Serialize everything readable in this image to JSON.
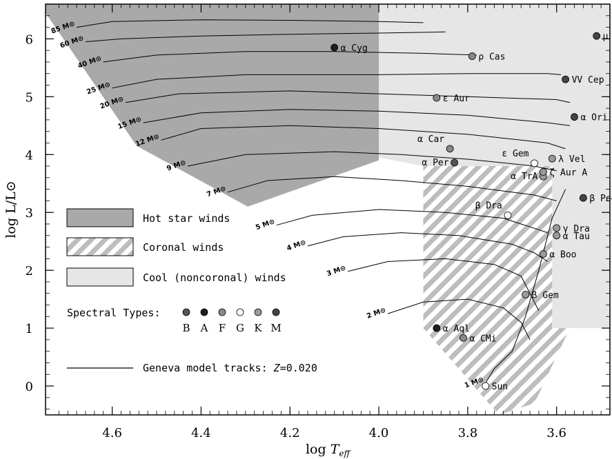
{
  "chart_data": {
    "type": "scatter",
    "title": "",
    "xlabel": "log T_eff",
    "xlabel_base": "log ",
    "xlabel_var": "T",
    "xlabel_sub": "eff",
    "ylabel": "log L/L⊙",
    "xlim": [
      4.75,
      3.48
    ],
    "ylim": [
      -0.5,
      6.6
    ],
    "x_reversed": true,
    "x_ticks": [
      4.6,
      4.4,
      4.2,
      4.0,
      3.8,
      3.6
    ],
    "x_tick_labels": [
      "4.6",
      "4.4",
      "4.2",
      "4.0",
      "3.8",
      "3.6"
    ],
    "y_ticks": [
      0,
      1,
      2,
      3,
      4,
      5,
      6
    ],
    "y_tick_labels": [
      "0",
      "1",
      "2",
      "3",
      "4",
      "5",
      "6"
    ],
    "regions": [
      {
        "name": "Hot star winds",
        "fill": "#a9a9a9",
        "pattern": "solid",
        "polygon": [
          [
            4.75,
            6.6
          ],
          [
            4.0,
            6.6
          ],
          [
            4.0,
            3.9
          ],
          [
            4.295,
            3.1
          ],
          [
            4.545,
            4.15
          ],
          [
            4.75,
            6.45
          ]
        ]
      },
      {
        "name": "Cool (noncoronal) winds",
        "fill": "#e6e6e6",
        "pattern": "solid",
        "polygon": [
          [
            4.0,
            6.6
          ],
          [
            3.48,
            6.6
          ],
          [
            3.48,
            1.0
          ],
          [
            3.61,
            1.0
          ],
          [
            3.61,
            3.8
          ],
          [
            3.9,
            3.8
          ],
          [
            4.0,
            3.95
          ]
        ]
      },
      {
        "name": "Coronal winds",
        "fill": "#bdbdbd",
        "pattern": "hatch",
        "polygon": [
          [
            3.9,
            3.8
          ],
          [
            3.61,
            3.8
          ],
          [
            3.61,
            1.0
          ],
          [
            3.57,
            1.0
          ],
          [
            3.65,
            -0.3
          ],
          [
            3.73,
            -0.5
          ],
          [
            3.9,
            1.0
          ]
        ]
      }
    ],
    "legend": {
      "placement": "left",
      "entries": [
        "Hot star winds",
        "Coronal winds",
        "Cool (noncoronal) winds"
      ],
      "spectral_label": "Spectral Types:",
      "spectral_types": [
        {
          "type": "B",
          "color": "#555555"
        },
        {
          "type": "A",
          "color": "#1e1e1e"
        },
        {
          "type": "F",
          "color": "#888888"
        },
        {
          "type": "G",
          "color": "#ffffff"
        },
        {
          "type": "K",
          "color": "#9a9a9a"
        },
        {
          "type": "M",
          "color": "#444444"
        }
      ],
      "track_label_prefix": "Geneva model tracks: ",
      "track_label_var": "Z",
      "track_label_value": "=0.020"
    },
    "series": [
      {
        "name": "B",
        "color": "#555555",
        "points": [
          {
            "label": "α Per",
            "x": 3.83,
            "y": 3.86
          }
        ]
      },
      {
        "name": "A",
        "color": "#1e1e1e",
        "points": [
          {
            "label": "α Cyg",
            "x": 4.1,
            "y": 5.85
          },
          {
            "label": "α Aql",
            "x": 3.87,
            "y": 1.0
          }
        ]
      },
      {
        "name": "F",
        "color": "#888888",
        "points": [
          {
            "label": "ε Aur",
            "x": 3.87,
            "y": 4.98
          },
          {
            "label": "ρ Cas",
            "x": 3.79,
            "y": 5.7
          },
          {
            "label": "α Car",
            "x": 3.84,
            "y": 4.1
          },
          {
            "label": "α CMi",
            "x": 3.81,
            "y": 0.83
          }
        ]
      },
      {
        "name": "G",
        "color": "#ffffff",
        "points": [
          {
            "label": "Sun",
            "x": 3.76,
            "y": 0.0
          },
          {
            "label": "ε Gem",
            "x": 3.65,
            "y": 3.85
          },
          {
            "label": "β Dra",
            "x": 3.71,
            "y": 2.95
          }
        ]
      },
      {
        "name": "K",
        "color": "#9a9a9a",
        "points": [
          {
            "label": "α TrA",
            "x": 3.63,
            "y": 3.62
          },
          {
            "label": "λ Vel",
            "x": 3.61,
            "y": 3.93
          },
          {
            "label": "ζ Aur A",
            "x": 3.63,
            "y": 3.7
          },
          {
            "label": "γ Dra",
            "x": 3.6,
            "y": 2.73
          },
          {
            "label": "α Tau",
            "x": 3.6,
            "y": 2.6
          },
          {
            "label": "α Boo",
            "x": 3.63,
            "y": 2.28
          },
          {
            "label": "β Gem",
            "x": 3.67,
            "y": 1.58
          }
        ]
      },
      {
        "name": "M",
        "color": "#444444",
        "points": [
          {
            "label": "μ Cep",
            "x": 3.51,
            "y": 6.05
          },
          {
            "label": "VV Cep",
            "x": 3.58,
            "y": 5.3
          },
          {
            "label": "α Ori",
            "x": 3.56,
            "y": 4.65
          },
          {
            "label": "β Peg",
            "x": 3.54,
            "y": 3.25
          }
        ]
      }
    ],
    "tracks": [
      {
        "label": "85 M⊙",
        "points": [
          [
            4.68,
            6.2
          ],
          [
            4.6,
            6.3
          ],
          [
            4.4,
            6.33
          ],
          [
            4.2,
            6.32
          ],
          [
            4.0,
            6.3
          ],
          [
            3.9,
            6.28
          ]
        ]
      },
      {
        "label": "60 M⊙",
        "points": [
          [
            4.66,
            5.95
          ],
          [
            4.58,
            6.0
          ],
          [
            4.4,
            6.05
          ],
          [
            4.2,
            6.08
          ],
          [
            4.0,
            6.1
          ],
          [
            3.85,
            6.12
          ]
        ]
      },
      {
        "label": "40 M⊙",
        "points": [
          [
            4.62,
            5.6
          ],
          [
            4.5,
            5.72
          ],
          [
            4.3,
            5.78
          ],
          [
            4.1,
            5.78
          ],
          [
            3.9,
            5.75
          ],
          [
            3.78,
            5.72
          ]
        ]
      },
      {
        "label": "25 M⊙",
        "points": [
          [
            4.6,
            5.15
          ],
          [
            4.5,
            5.3
          ],
          [
            4.3,
            5.38
          ],
          [
            4.0,
            5.38
          ],
          [
            3.8,
            5.4
          ],
          [
            3.62,
            5.4
          ],
          [
            3.59,
            5.38
          ]
        ]
      },
      {
        "label": "20 M⊙",
        "points": [
          [
            4.57,
            4.9
          ],
          [
            4.45,
            5.05
          ],
          [
            4.2,
            5.1
          ],
          [
            4.0,
            5.05
          ],
          [
            3.8,
            5.0
          ],
          [
            3.6,
            4.95
          ],
          [
            3.57,
            4.9
          ]
        ]
      },
      {
        "label": "15 M⊙",
        "points": [
          [
            4.53,
            4.55
          ],
          [
            4.4,
            4.72
          ],
          [
            4.2,
            4.78
          ],
          [
            4.0,
            4.75
          ],
          [
            3.8,
            4.68
          ],
          [
            3.62,
            4.55
          ],
          [
            3.57,
            4.5
          ]
        ]
      },
      {
        "label": "12 M⊙",
        "points": [
          [
            4.49,
            4.25
          ],
          [
            4.4,
            4.45
          ],
          [
            4.2,
            4.5
          ],
          [
            4.0,
            4.45
          ],
          [
            3.8,
            4.35
          ],
          [
            3.62,
            4.2
          ],
          [
            3.58,
            4.1
          ]
        ]
      },
      {
        "label": "9 M⊙",
        "points": [
          [
            4.43,
            3.8
          ],
          [
            4.3,
            4.0
          ],
          [
            4.1,
            4.05
          ],
          [
            3.95,
            4.0
          ],
          [
            3.8,
            3.92
          ],
          [
            3.65,
            3.8
          ],
          [
            3.6,
            3.72
          ]
        ]
      },
      {
        "label": "7 M⊙",
        "points": [
          [
            4.34,
            3.35
          ],
          [
            4.25,
            3.55
          ],
          [
            4.1,
            3.62
          ],
          [
            3.95,
            3.55
          ],
          [
            3.8,
            3.45
          ],
          [
            3.65,
            3.3
          ],
          [
            3.6,
            3.2
          ]
        ]
      },
      {
        "label": "5 M⊙",
        "points": [
          [
            4.23,
            2.78
          ],
          [
            4.15,
            2.95
          ],
          [
            4.0,
            3.05
          ],
          [
            3.85,
            3.0
          ],
          [
            3.72,
            2.9
          ],
          [
            3.66,
            2.75
          ],
          [
            3.62,
            2.65
          ]
        ]
      },
      {
        "label": "4 M⊙",
        "points": [
          [
            4.16,
            2.42
          ],
          [
            4.08,
            2.58
          ],
          [
            3.95,
            2.65
          ],
          [
            3.82,
            2.6
          ],
          [
            3.7,
            2.45
          ],
          [
            3.65,
            2.3
          ],
          [
            3.62,
            2.15
          ]
        ]
      },
      {
        "label": "3 M⊙",
        "points": [
          [
            4.07,
            1.98
          ],
          [
            3.98,
            2.15
          ],
          [
            3.85,
            2.2
          ],
          [
            3.74,
            2.1
          ],
          [
            3.68,
            1.9
          ],
          [
            3.66,
            1.6
          ],
          [
            3.64,
            1.3
          ]
        ]
      },
      {
        "label": "2 M⊙",
        "points": [
          [
            3.98,
            1.25
          ],
          [
            3.9,
            1.45
          ],
          [
            3.8,
            1.5
          ],
          [
            3.72,
            1.35
          ],
          [
            3.68,
            1.1
          ],
          [
            3.66,
            0.8
          ]
        ]
      },
      {
        "label": "1 M⊙",
        "points": [
          [
            3.76,
            0.05
          ],
          [
            3.74,
            0.3
          ],
          [
            3.7,
            0.6
          ],
          [
            3.67,
            1.2
          ],
          [
            3.64,
            2.0
          ],
          [
            3.61,
            2.9
          ],
          [
            3.58,
            3.4
          ]
        ]
      }
    ]
  }
}
